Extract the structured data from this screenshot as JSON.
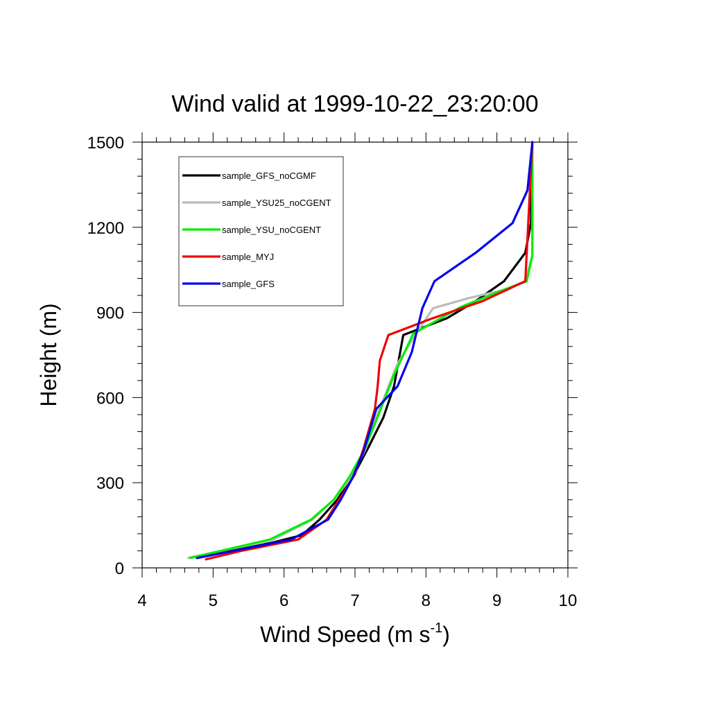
{
  "chart_data": {
    "type": "line",
    "title": "Wind valid at 1999-10-22_23:20:00",
    "xlabel_main": "Wind Speed (m s",
    "xlabel_sup": "-1",
    "xlabel_tail": ")",
    "ylabel": "Height (m)",
    "xlim": [
      4,
      10
    ],
    "ylim": [
      0,
      1500
    ],
    "x_ticks": [
      "4",
      "5",
      "6",
      "7",
      "8",
      "9",
      "10"
    ],
    "y_ticks": [
      "0",
      "300",
      "600",
      "900",
      "1200",
      "1500"
    ],
    "legend_position": "top-left",
    "series": [
      {
        "name": "sample_GFS_noCGMF",
        "color": "#000000",
        "points": [
          [
            4.77,
            35
          ],
          [
            5.85,
            90
          ],
          [
            6.25,
            115
          ],
          [
            6.5,
            170
          ],
          [
            6.75,
            240
          ],
          [
            7.0,
            335
          ],
          [
            7.2,
            430
          ],
          [
            7.4,
            530
          ],
          [
            7.55,
            640
          ],
          [
            7.68,
            820
          ],
          [
            8.3,
            880
          ],
          [
            8.7,
            940
          ],
          [
            9.1,
            1010
          ],
          [
            9.4,
            1110
          ],
          [
            9.48,
            1215
          ],
          [
            9.5,
            1500
          ]
        ]
      },
      {
        "name": "sample_YSU25_noCGENT",
        "color": "#bbbbbb",
        "points": [
          [
            4.65,
            35
          ],
          [
            5.85,
            100
          ],
          [
            6.4,
            170
          ],
          [
            6.7,
            240
          ],
          [
            6.95,
            320
          ],
          [
            7.15,
            420
          ],
          [
            7.3,
            530
          ],
          [
            7.6,
            720
          ],
          [
            7.9,
            840
          ],
          [
            8.1,
            915
          ],
          [
            8.6,
            950
          ],
          [
            9.1,
            980
          ],
          [
            9.4,
            1010
          ],
          [
            9.5,
            1100
          ],
          [
            9.5,
            1500
          ]
        ]
      },
      {
        "name": "sample_YSU_noCGENT",
        "color": "#00ee00",
        "points": [
          [
            4.68,
            35
          ],
          [
            5.8,
            100
          ],
          [
            6.38,
            170
          ],
          [
            6.7,
            240
          ],
          [
            6.92,
            320
          ],
          [
            7.12,
            410
          ],
          [
            7.3,
            520
          ],
          [
            7.55,
            680
          ],
          [
            7.82,
            825
          ],
          [
            8.5,
            920
          ],
          [
            9.0,
            970
          ],
          [
            9.42,
            1010
          ],
          [
            9.5,
            1100
          ],
          [
            9.5,
            1500
          ]
        ]
      },
      {
        "name": "sample_MYJ",
        "color": "#ee0000",
        "points": [
          [
            4.9,
            30
          ],
          [
            5.4,
            60
          ],
          [
            6.2,
            100
          ],
          [
            6.6,
            170
          ],
          [
            6.8,
            250
          ],
          [
            7.0,
            330
          ],
          [
            7.12,
            420
          ],
          [
            7.28,
            560
          ],
          [
            7.32,
            640
          ],
          [
            7.35,
            730
          ],
          [
            7.47,
            820
          ],
          [
            8.1,
            880
          ],
          [
            8.8,
            940
          ],
          [
            9.4,
            1010
          ],
          [
            9.5,
            1500
          ]
        ]
      },
      {
        "name": "sample_GFS",
        "color": "#0000ee",
        "points": [
          [
            4.78,
            35
          ],
          [
            6.1,
            100
          ],
          [
            6.62,
            170
          ],
          [
            6.8,
            240
          ],
          [
            6.97,
            320
          ],
          [
            7.12,
            410
          ],
          [
            7.3,
            560
          ],
          [
            7.6,
            640
          ],
          [
            7.8,
            760
          ],
          [
            7.95,
            915
          ],
          [
            8.12,
            1010
          ],
          [
            8.7,
            1110
          ],
          [
            9.22,
            1215
          ],
          [
            9.43,
            1330
          ],
          [
            9.5,
            1500
          ]
        ]
      }
    ]
  }
}
